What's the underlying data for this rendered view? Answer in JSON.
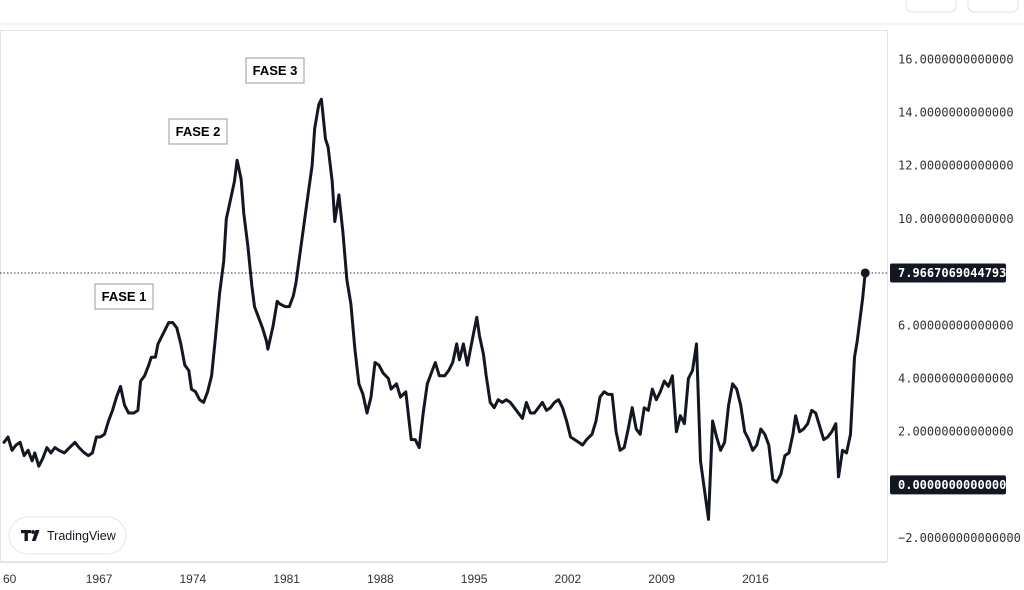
{
  "chart_data": {
    "type": "line",
    "title": "",
    "xlabel": "",
    "ylabel": "",
    "x_ticks": [
      "60",
      "1967",
      "1974",
      "1981",
      "1988",
      "1995",
      "2002",
      "2009",
      "2016"
    ],
    "y_ticks": [
      "16.0000000000000",
      "14.0000000000000",
      "12.0000000000000",
      "10.0000000000000",
      "6.00000000000000",
      "4.00000000000000",
      "2.00000000000000",
      "−2.00000000000000"
    ],
    "ylim": [
      -2.9,
      17.1
    ],
    "xlim": [
      1959.9,
      2025.6
    ],
    "grid": false,
    "line_color": "#131722",
    "last_value_label": "7.96670690447932",
    "zero_label": "0.00000000000000",
    "reference_line_value": 7.9667,
    "annotations": [
      {
        "text": "FASE 1",
        "x": 1969.7,
        "y": 6.1
      },
      {
        "text": "FASE 2",
        "x": 1974.8,
        "y": 12.3
      },
      {
        "text": "FASE 3",
        "x": 1980.3,
        "y": 14.6
      }
    ],
    "series": [
      {
        "points": [
          [
            1959.9,
            1.6
          ],
          [
            1960.2,
            1.8
          ],
          [
            1960.5,
            1.3
          ],
          [
            1960.8,
            1.5
          ],
          [
            1961.1,
            1.6
          ],
          [
            1961.4,
            1.1
          ],
          [
            1961.7,
            1.3
          ],
          [
            1962.0,
            0.9
          ],
          [
            1962.2,
            1.2
          ],
          [
            1962.5,
            0.7
          ],
          [
            1962.8,
            1.0
          ],
          [
            1963.1,
            1.4
          ],
          [
            1963.4,
            1.2
          ],
          [
            1963.7,
            1.4
          ],
          [
            1964.0,
            1.3
          ],
          [
            1964.4,
            1.2
          ],
          [
            1964.8,
            1.4
          ],
          [
            1965.2,
            1.6
          ],
          [
            1965.5,
            1.4
          ],
          [
            1965.9,
            1.2
          ],
          [
            1966.2,
            1.1
          ],
          [
            1966.5,
            1.2
          ],
          [
            1966.8,
            1.8
          ],
          [
            1967.1,
            1.8
          ],
          [
            1967.4,
            1.9
          ],
          [
            1967.7,
            2.4
          ],
          [
            1968.0,
            2.8
          ],
          [
            1968.3,
            3.3
          ],
          [
            1968.6,
            3.7
          ],
          [
            1968.9,
            3.0
          ],
          [
            1969.2,
            2.7
          ],
          [
            1969.6,
            2.7
          ],
          [
            1969.9,
            2.8
          ],
          [
            1970.1,
            3.9
          ],
          [
            1970.4,
            4.1
          ],
          [
            1970.7,
            4.5
          ],
          [
            1970.9,
            4.8
          ],
          [
            1971.2,
            4.8
          ],
          [
            1971.4,
            5.3
          ],
          [
            1971.6,
            5.5
          ],
          [
            1971.9,
            5.8
          ],
          [
            1972.2,
            6.1
          ],
          [
            1972.5,
            6.1
          ],
          [
            1972.8,
            5.9
          ],
          [
            1973.1,
            5.3
          ],
          [
            1973.4,
            4.5
          ],
          [
            1973.7,
            4.3
          ],
          [
            1973.9,
            3.6
          ],
          [
            1974.2,
            3.5
          ],
          [
            1974.5,
            3.2
          ],
          [
            1974.8,
            3.1
          ],
          [
            1975.1,
            3.5
          ],
          [
            1975.4,
            4.1
          ],
          [
            1975.7,
            5.6
          ],
          [
            1976.0,
            7.2
          ],
          [
            1976.3,
            8.4
          ],
          [
            1976.5,
            10.0
          ],
          [
            1976.8,
            10.7
          ],
          [
            1977.1,
            11.4
          ],
          [
            1977.3,
            12.2
          ],
          [
            1977.6,
            11.5
          ],
          [
            1977.8,
            10.2
          ],
          [
            1978.1,
            9.0
          ],
          [
            1978.4,
            7.5
          ],
          [
            1978.6,
            6.7
          ],
          [
            1978.9,
            6.3
          ],
          [
            1979.2,
            5.9
          ],
          [
            1979.5,
            5.4
          ],
          [
            1979.6,
            5.1
          ],
          [
            1980.0,
            6.0
          ],
          [
            1980.3,
            6.9
          ],
          [
            1980.5,
            6.8
          ],
          [
            1980.9,
            6.7
          ],
          [
            1981.2,
            6.7
          ],
          [
            1981.5,
            7.1
          ],
          [
            1981.7,
            7.6
          ],
          [
            1982.0,
            8.7
          ],
          [
            1982.3,
            9.8
          ],
          [
            1982.6,
            10.9
          ],
          [
            1982.9,
            12.0
          ],
          [
            1983.1,
            13.4
          ],
          [
            1983.4,
            14.3
          ],
          [
            1983.6,
            14.5
          ],
          [
            1983.9,
            13.0
          ],
          [
            1984.1,
            12.7
          ],
          [
            1984.4,
            11.4
          ],
          [
            1984.6,
            9.9
          ],
          [
            1984.9,
            10.9
          ],
          [
            1985.2,
            9.5
          ],
          [
            1985.5,
            7.7
          ],
          [
            1985.8,
            6.8
          ],
          [
            1986.1,
            5.1
          ],
          [
            1986.4,
            3.8
          ],
          [
            1986.7,
            3.4
          ],
          [
            1987.0,
            2.7
          ],
          [
            1987.3,
            3.3
          ],
          [
            1987.6,
            4.6
          ],
          [
            1987.9,
            4.5
          ],
          [
            1988.2,
            4.2
          ],
          [
            1988.6,
            4.0
          ],
          [
            1988.8,
            3.6
          ],
          [
            1989.2,
            3.8
          ],
          [
            1989.5,
            3.3
          ],
          [
            1989.9,
            3.5
          ],
          [
            1990.3,
            1.7
          ],
          [
            1990.6,
            1.7
          ],
          [
            1990.9,
            1.4
          ],
          [
            1991.2,
            2.7
          ],
          [
            1991.5,
            3.8
          ],
          [
            1991.8,
            4.2
          ],
          [
            1992.1,
            4.6
          ],
          [
            1992.4,
            4.1
          ],
          [
            1992.8,
            4.1
          ],
          [
            1993.1,
            4.3
          ],
          [
            1993.4,
            4.6
          ],
          [
            1993.7,
            5.3
          ],
          [
            1993.9,
            4.7
          ],
          [
            1994.2,
            5.3
          ],
          [
            1994.5,
            4.5
          ],
          [
            1994.8,
            5.3
          ],
          [
            1995.0,
            5.8
          ],
          [
            1995.2,
            6.3
          ],
          [
            1995.4,
            5.6
          ],
          [
            1995.7,
            4.9
          ],
          [
            1995.9,
            4.1
          ],
          [
            1996.2,
            3.1
          ],
          [
            1996.5,
            2.9
          ],
          [
            1996.8,
            3.2
          ],
          [
            1997.1,
            3.1
          ],
          [
            1997.4,
            3.2
          ],
          [
            1997.7,
            3.1
          ],
          [
            1998.0,
            2.9
          ],
          [
            1998.3,
            2.7
          ],
          [
            1998.6,
            2.5
          ],
          [
            1998.9,
            3.1
          ],
          [
            1999.2,
            2.7
          ],
          [
            1999.5,
            2.7
          ],
          [
            1999.8,
            2.9
          ],
          [
            2000.1,
            3.1
          ],
          [
            2000.4,
            2.8
          ],
          [
            2000.7,
            2.9
          ],
          [
            2001.0,
            3.1
          ],
          [
            2001.3,
            3.2
          ],
          [
            2001.6,
            2.9
          ],
          [
            2001.9,
            2.4
          ],
          [
            2002.2,
            1.8
          ],
          [
            2002.5,
            1.7
          ],
          [
            2002.8,
            1.6
          ],
          [
            2003.1,
            1.5
          ],
          [
            2003.4,
            1.7
          ],
          [
            2003.8,
            1.9
          ],
          [
            2004.1,
            2.4
          ],
          [
            2004.4,
            3.3
          ],
          [
            2004.7,
            3.5
          ],
          [
            2005.0,
            3.4
          ],
          [
            2005.3,
            3.4
          ],
          [
            2005.6,
            2.0
          ],
          [
            2005.9,
            1.3
          ],
          [
            2006.2,
            1.4
          ],
          [
            2006.5,
            2.1
          ],
          [
            2006.8,
            2.9
          ],
          [
            2007.1,
            2.1
          ],
          [
            2007.4,
            1.9
          ],
          [
            2007.7,
            2.9
          ],
          [
            2008.0,
            2.8
          ],
          [
            2008.3,
            3.6
          ],
          [
            2008.6,
            3.2
          ],
          [
            2008.9,
            3.5
          ],
          [
            2009.2,
            3.9
          ],
          [
            2009.5,
            3.7
          ],
          [
            2009.8,
            4.1
          ],
          [
            2010.1,
            2.0
          ],
          [
            2010.4,
            2.6
          ],
          [
            2010.7,
            2.3
          ],
          [
            2011.0,
            4.0
          ],
          [
            2011.3,
            4.3
          ],
          [
            2011.6,
            5.3
          ],
          [
            2011.9,
            0.9
          ],
          [
            2012.2,
            -0.2
          ],
          [
            2012.5,
            -1.3
          ],
          [
            2012.8,
            2.4
          ],
          [
            2013.1,
            1.8
          ],
          [
            2013.4,
            1.3
          ],
          [
            2013.7,
            1.6
          ],
          [
            2014.0,
            3.0
          ],
          [
            2014.3,
            3.8
          ],
          [
            2014.6,
            3.6
          ],
          [
            2014.9,
            3.0
          ],
          [
            2015.2,
            2.0
          ],
          [
            2015.5,
            1.7
          ],
          [
            2015.8,
            1.3
          ],
          [
            2016.1,
            1.5
          ],
          [
            2016.4,
            2.1
          ],
          [
            2016.7,
            1.9
          ],
          [
            2017.0,
            1.5
          ],
          [
            2017.3,
            0.2
          ],
          [
            2017.6,
            0.1
          ],
          [
            2017.9,
            0.4
          ],
          [
            2018.2,
            1.1
          ],
          [
            2018.5,
            1.2
          ],
          [
            2018.8,
            1.9
          ],
          [
            2019.0,
            2.6
          ],
          [
            2019.3,
            2.0
          ],
          [
            2019.6,
            2.1
          ],
          [
            2019.9,
            2.3
          ],
          [
            2020.2,
            2.8
          ],
          [
            2020.5,
            2.7
          ],
          [
            2020.8,
            2.2
          ],
          [
            2021.1,
            1.7
          ],
          [
            2021.4,
            1.8
          ],
          [
            2021.7,
            2.0
          ],
          [
            2022.0,
            2.3
          ],
          [
            2022.2,
            0.3
          ],
          [
            2022.5,
            1.3
          ],
          [
            2022.8,
            1.2
          ],
          [
            2023.1,
            1.9
          ],
          [
            2023.4,
            4.8
          ],
          [
            2023.6,
            5.4
          ],
          [
            2023.8,
            6.2
          ],
          [
            2024.0,
            7.0
          ],
          [
            2024.2,
            7.9666
          ]
        ]
      }
    ]
  },
  "branding": {
    "name": "TradingView"
  }
}
